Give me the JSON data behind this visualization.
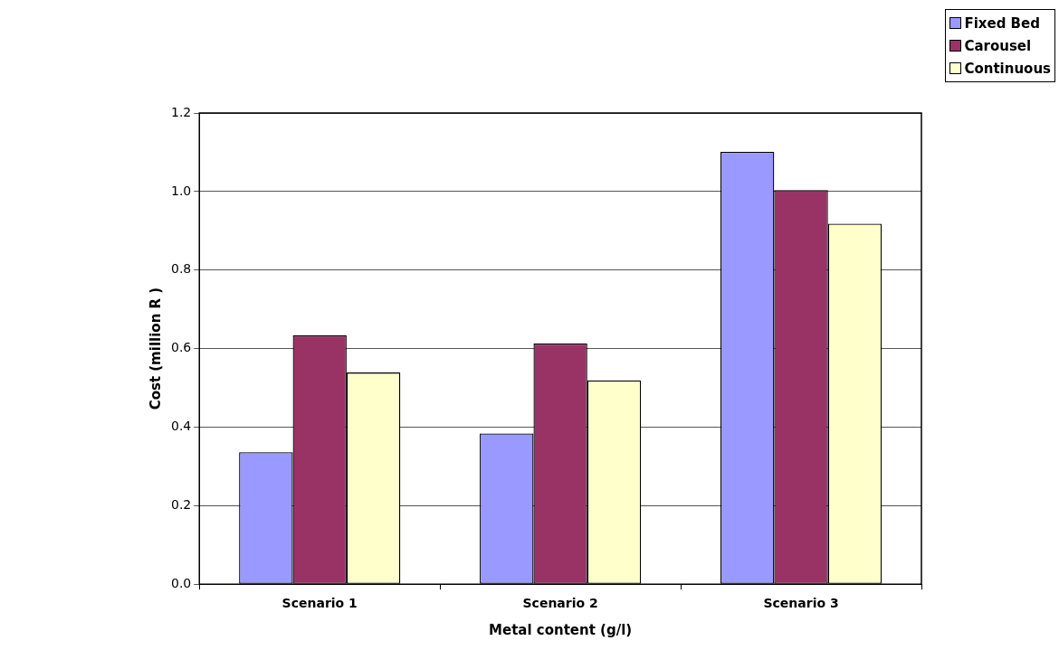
{
  "chart_data": {
    "type": "bar",
    "xlabel": "Metal content (g/l)",
    "ylabel": "Cost (million R )",
    "categories": [
      "Scenario 1",
      "Scenario 2",
      "Scenario 3"
    ],
    "series": [
      {
        "name": "Fixed Bed",
        "color": "#9999ff",
        "values": [
          0.336,
          0.384,
          1.101
        ]
      },
      {
        "name": "Carousel",
        "color": "#993366",
        "values": [
          0.634,
          0.613,
          1.004
        ]
      },
      {
        "name": "Continuous",
        "color": "#ffffcc",
        "values": [
          0.539,
          0.519,
          0.918
        ]
      }
    ],
    "ylim": [
      0,
      1.2
    ],
    "yticks": [
      {
        "value": 0,
        "label": "0.0"
      },
      {
        "value": 0.2,
        "label": "0.2"
      },
      {
        "value": 0.4,
        "label": "0.4"
      },
      {
        "value": 0.6,
        "label": "0.6"
      },
      {
        "value": 0.8,
        "label": "0.8"
      },
      {
        "value": 1,
        "label": "1.0"
      },
      {
        "value": 1.2,
        "label": "1.2"
      }
    ],
    "grid": "y",
    "legend": "top right"
  }
}
